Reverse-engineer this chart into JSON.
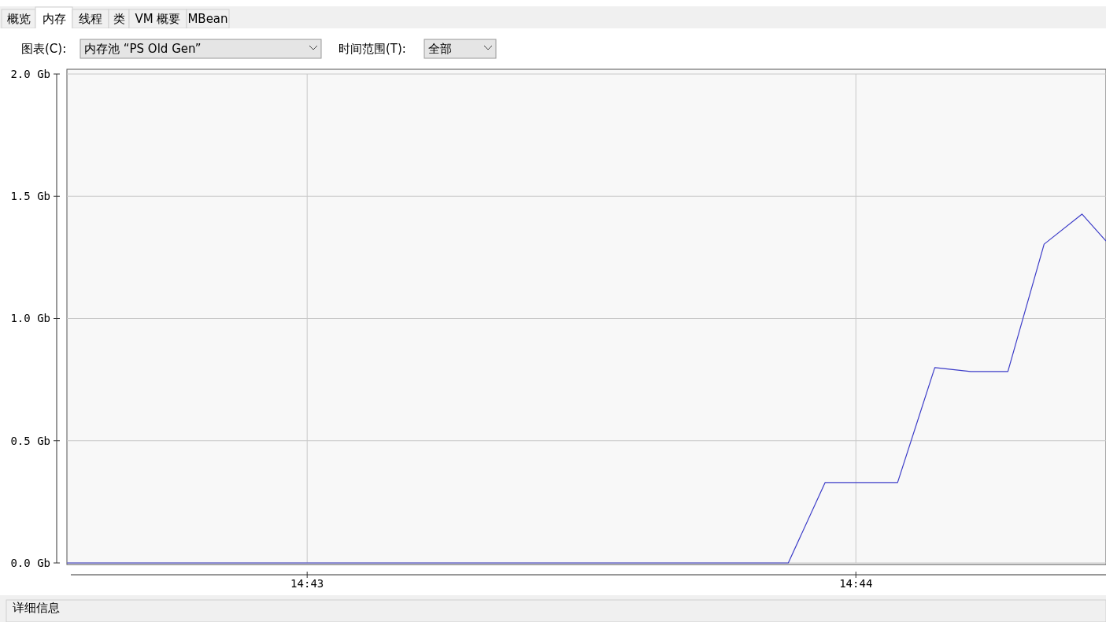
{
  "chart_data": {
    "type": "line",
    "x": [
      14.70937,
      14.73128,
      14.7324,
      14.7346,
      14.73573,
      14.73682,
      14.73795,
      14.73905,
      14.7402,
      14.74093
    ],
    "series": [
      {
        "color": "#3c3cc8",
        "values": [
          0,
          0,
          0.329,
          0.329,
          0.799,
          0.783,
          0.783,
          1.304,
          1.427,
          1.317
        ]
      }
    ],
    "xlim": [
      14.70937,
      14.74093
    ],
    "xticks": [
      {
        "value": 14.716667,
        "label": "14:43"
      },
      {
        "value": 14.733333,
        "label": "14:44"
      }
    ],
    "ylim": [
      0,
      2
    ],
    "yticks": [
      {
        "value": 0,
        "label": "0.0 Gb"
      },
      {
        "value": 0.5,
        "label": "0.5 Gb"
      },
      {
        "value": 1,
        "label": "1.0 Gb"
      },
      {
        "value": 1.5,
        "label": "1.5 Gb"
      },
      {
        "value": 2,
        "label": "2.0 Gb"
      }
    ],
    "grid": true,
    "line_style": "solid",
    "annotations": [
      "概览",
      "内存",
      "线程",
      "类",
      "VM 概要",
      "MBean",
      "图表(C):",
      "内存池 “PS Old Gen”",
      "时间范围(T):",
      "全部",
      "详细信息"
    ]
  }
}
